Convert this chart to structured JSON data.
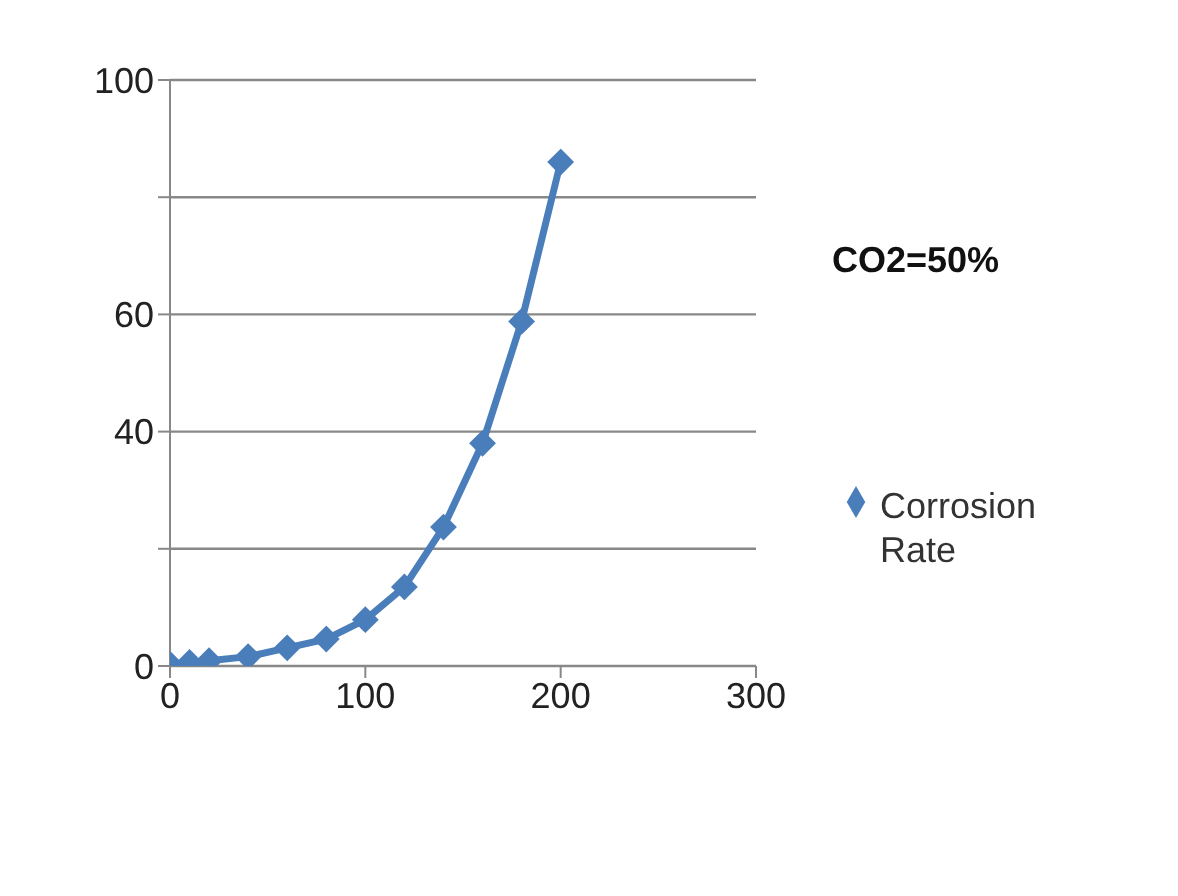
{
  "chart_data": {
    "type": "line",
    "title": "CO2=50%",
    "x": [
      0,
      10,
      20,
      40,
      60,
      80,
      100,
      120,
      140,
      160,
      180,
      200
    ],
    "series": [
      {
        "name": "Corrosion Rate",
        "color": "#4a7ebb",
        "values": [
          0.3,
          0.6,
          0.9,
          1.6,
          3.1,
          4.6,
          7.9,
          13.5,
          23.7,
          38,
          58.8,
          86
        ]
      }
    ],
    "xlim": [
      0,
      300
    ],
    "xticks": [
      0,
      100,
      200,
      300
    ],
    "ylim": [
      0,
      100
    ],
    "yticks": [
      0,
      {
        "value": 20,
        "label": null
      },
      40,
      {
        "value": 60,
        "label": "60"
      },
      {
        "value": 80,
        "label": null
      },
      100
    ],
    "grid": "y",
    "legend": "right",
    "marker": "diamond",
    "line_style": "solid"
  }
}
